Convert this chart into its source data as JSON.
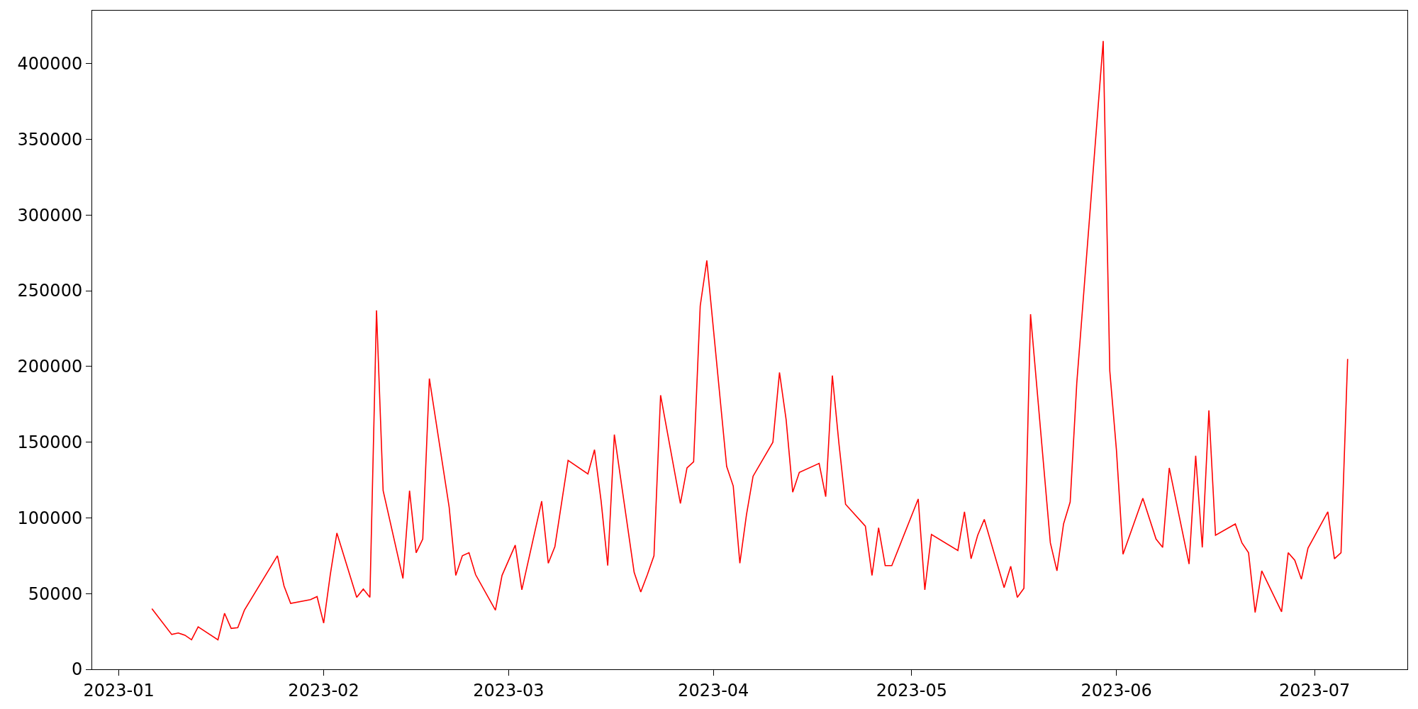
{
  "chart_data": {
    "type": "line",
    "x": [
      "2023-01-06",
      "2023-01-09",
      "2023-01-10",
      "2023-01-11",
      "2023-01-12",
      "2023-01-13",
      "2023-01-16",
      "2023-01-17",
      "2023-01-18",
      "2023-01-19",
      "2023-01-20",
      "2023-01-25",
      "2023-01-26",
      "2023-01-27",
      "2023-01-30",
      "2023-01-31",
      "2023-02-01",
      "2023-02-02",
      "2023-02-03",
      "2023-02-06",
      "2023-02-07",
      "2023-02-08",
      "2023-02-09",
      "2023-02-10",
      "2023-02-13",
      "2023-02-14",
      "2023-02-15",
      "2023-02-16",
      "2023-02-17",
      "2023-02-20",
      "2023-02-21",
      "2023-02-22",
      "2023-02-23",
      "2023-02-24",
      "2023-02-27",
      "2023-02-28",
      "2023-03-02",
      "2023-03-03",
      "2023-03-06",
      "2023-03-07",
      "2023-03-08",
      "2023-03-10",
      "2023-03-13",
      "2023-03-14",
      "2023-03-15",
      "2023-03-16",
      "2023-03-17",
      "2023-03-20",
      "2023-03-21",
      "2023-03-22",
      "2023-03-23",
      "2023-03-24",
      "2023-03-27",
      "2023-03-28",
      "2023-03-29",
      "2023-03-30",
      "2023-03-31",
      "2023-04-03",
      "2023-04-04",
      "2023-04-05",
      "2023-04-06",
      "2023-04-07",
      "2023-04-10",
      "2023-04-11",
      "2023-04-12",
      "2023-04-13",
      "2023-04-14",
      "2023-04-17",
      "2023-04-18",
      "2023-04-19",
      "2023-04-20",
      "2023-04-21",
      "2023-04-24",
      "2023-04-25",
      "2023-04-26",
      "2023-04-27",
      "2023-04-28",
      "2023-05-02",
      "2023-05-03",
      "2023-05-04",
      "2023-05-08",
      "2023-05-09",
      "2023-05-10",
      "2023-05-11",
      "2023-05-12",
      "2023-05-15",
      "2023-05-16",
      "2023-05-17",
      "2023-05-18",
      "2023-05-19",
      "2023-05-22",
      "2023-05-23",
      "2023-05-24",
      "2023-05-25",
      "2023-05-26",
      "2023-05-30",
      "2023-05-31",
      "2023-06-01",
      "2023-06-02",
      "2023-06-05",
      "2023-06-07",
      "2023-06-08",
      "2023-06-09",
      "2023-06-12",
      "2023-06-13",
      "2023-06-14",
      "2023-06-15",
      "2023-06-16",
      "2023-06-19",
      "2023-06-20",
      "2023-06-21",
      "2023-06-22",
      "2023-06-23",
      "2023-06-26",
      "2023-06-27",
      "2023-06-28",
      "2023-06-29",
      "2023-06-30",
      "2023-07-03",
      "2023-07-04",
      "2023-07-05",
      "2023-07-06"
    ],
    "series": [
      {
        "color": "#ff0000",
        "values": [
          40000,
          23000,
          24000,
          22500,
          19500,
          28000,
          19500,
          37000,
          27000,
          27500,
          39000,
          75000,
          55000,
          43500,
          46000,
          48000,
          30500,
          62500,
          90000,
          47500,
          53000,
          47500,
          237000,
          118000,
          60000,
          118000,
          77000,
          86000,
          192000,
          107000,
          62000,
          75000,
          77000,
          62500,
          39000,
          62000,
          82000,
          52500,
          111000,
          70000,
          81000,
          138000,
          129000,
          145000,
          111000,
          68500,
          155000,
          64000,
          51000,
          62500,
          75000,
          181000,
          109500,
          133000,
          137000,
          240000,
          270000,
          134000,
          121000,
          70000,
          102000,
          127500,
          150000,
          196000,
          165000,
          117000,
          130000,
          136000,
          114000,
          194000,
          149000,
          109000,
          94500,
          62000,
          93500,
          68500,
          68500,
          112500,
          52500,
          89000,
          78500,
          104000,
          73000,
          88500,
          99000,
          54000,
          68000,
          47500,
          53500,
          234500,
          83500,
          65000,
          96000,
          110500,
          189000,
          415000,
          197000,
          145000,
          76000,
          113000,
          86000,
          80500,
          133000,
          69500,
          141000,
          80500,
          171000,
          88500,
          96000,
          83500,
          77000,
          37500,
          65000,
          38000,
          77000,
          72000,
          59500,
          80000,
          104000,
          73000,
          77000,
          205000
        ]
      }
    ],
    "xlim": [
      "2022-12-27T23:00",
      "2023-07-15T01:00"
    ],
    "xticks": [
      {
        "value": "2023-01-01",
        "label": "2023-01"
      },
      {
        "value": "2023-02-01",
        "label": "2023-02"
      },
      {
        "value": "2023-03-01",
        "label": "2023-03"
      },
      {
        "value": "2023-04-01",
        "label": "2023-04"
      },
      {
        "value": "2023-05-01",
        "label": "2023-05"
      },
      {
        "value": "2023-06-01",
        "label": "2023-06"
      },
      {
        "value": "2023-07-01",
        "label": "2023-07"
      }
    ],
    "ylim": [
      0,
      435000
    ],
    "yticks": [
      0,
      50000,
      100000,
      150000,
      200000,
      250000,
      300000,
      350000,
      400000
    ],
    "marker": "none",
    "line_style": "solid"
  }
}
